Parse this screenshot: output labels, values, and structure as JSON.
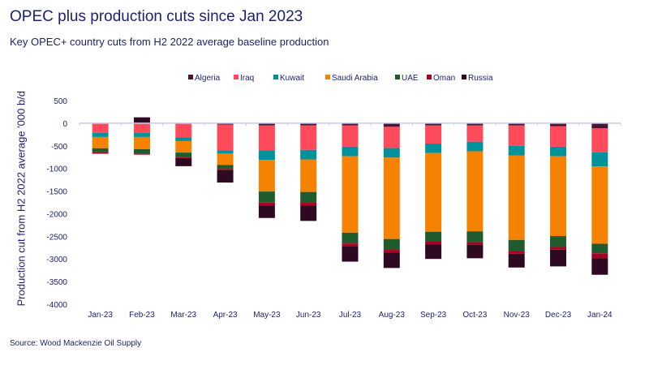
{
  "chart_data": {
    "type": "bar",
    "stacked": true,
    "title": "OPEC plus production cuts since Jan 2023",
    "subtitle": "Key OPEC+ country cuts from  H2 2022 average baseline production",
    "xlabel": "",
    "ylabel": "Production cut from H2 2022 average '000 b/d",
    "ylim": [
      -4000,
      500
    ],
    "yticks": [
      500,
      0,
      -500,
      -1000,
      -1500,
      -2000,
      -2500,
      -3000,
      -3500,
      -4000
    ],
    "grid": false,
    "legend_position": "top",
    "source": "Source: Wood Mackenzie Oil Supply",
    "categories": [
      "Jan-23",
      "Feb-23",
      "Mar-23",
      "Apr-23",
      "May-23",
      "Jun-23",
      "Jul-23",
      "Aug-23",
      "Sep-23",
      "Oct-23",
      "Nov-23",
      "Dec-23",
      "Jan-24"
    ],
    "series": [
      {
        "name": "Algeria",
        "color": "#4a1436",
        "values": [
          -10,
          -10,
          0,
          -30,
          -50,
          -50,
          -50,
          -80,
          -50,
          -50,
          -50,
          -65,
          -115
        ]
      },
      {
        "name": "Iraq",
        "color": "#ff4a5c",
        "values": [
          -205,
          -205,
          -310,
          -570,
          -550,
          -540,
          -470,
          -470,
          -400,
          -360,
          -450,
          -455,
          -530
        ]
      },
      {
        "name": "Kuwait",
        "color": "#00929a",
        "values": [
          -90,
          -90,
          -85,
          -72,
          -210,
          -210,
          -210,
          -210,
          -210,
          -210,
          -210,
          -210,
          -310
        ]
      },
      {
        "name": "Saudi Arabia",
        "color": "#f58200",
        "values": [
          -250,
          -270,
          -255,
          -250,
          -700,
          -720,
          -1690,
          -1800,
          -1740,
          -1770,
          -1870,
          -1765,
          -1710
        ]
      },
      {
        "name": "UAE",
        "color": "#1f5b2d",
        "values": [
          -90,
          -95,
          -90,
          -90,
          -245,
          -240,
          -240,
          -240,
          -210,
          -240,
          -245,
          -240,
          -210
        ]
      },
      {
        "name": "Oman",
        "color": "#a8001f",
        "values": [
          -30,
          -25,
          -30,
          -30,
          -60,
          -60,
          -60,
          -60,
          -65,
          -60,
          -60,
          -60,
          -110
        ]
      },
      {
        "name": "Russia",
        "color": "#2e0a22",
        "values": [
          0,
          130,
          -180,
          -270,
          -280,
          -340,
          -340,
          -340,
          -325,
          -295,
          -305,
          -370,
          -365
        ]
      }
    ]
  }
}
